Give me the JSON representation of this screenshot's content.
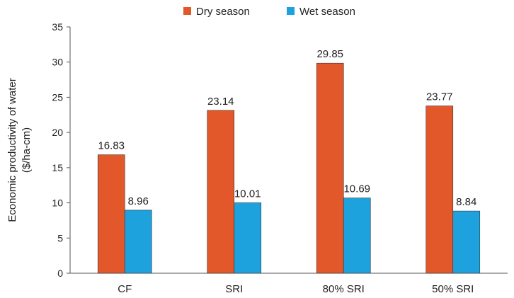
{
  "chart_data": {
    "type": "bar",
    "categories": [
      "CF",
      "SRI",
      "80% SRI",
      "50% SRI"
    ],
    "series": [
      {
        "name": "Dry season",
        "values": [
          16.83,
          23.14,
          29.85,
          23.77
        ],
        "labels": [
          "16.83",
          "23.14",
          "29.85",
          "23.77"
        ],
        "color": "#E2582A"
      },
      {
        "name": "Wet season",
        "values": [
          8.96,
          10.01,
          10.69,
          8.84
        ],
        "labels": [
          "8.96",
          "10.01",
          "10.69",
          "8.84"
        ],
        "color": "#1DA2DE"
      }
    ],
    "title": "",
    "xlabel": "",
    "ylabel_line1": "Economic productivity of water",
    "ylabel_line2": "($/ha-cm)",
    "ylim": [
      0,
      35
    ],
    "yticks": [
      0,
      5,
      10,
      15,
      20,
      25,
      30,
      35
    ],
    "grid": false,
    "legend_position": "top-center"
  }
}
